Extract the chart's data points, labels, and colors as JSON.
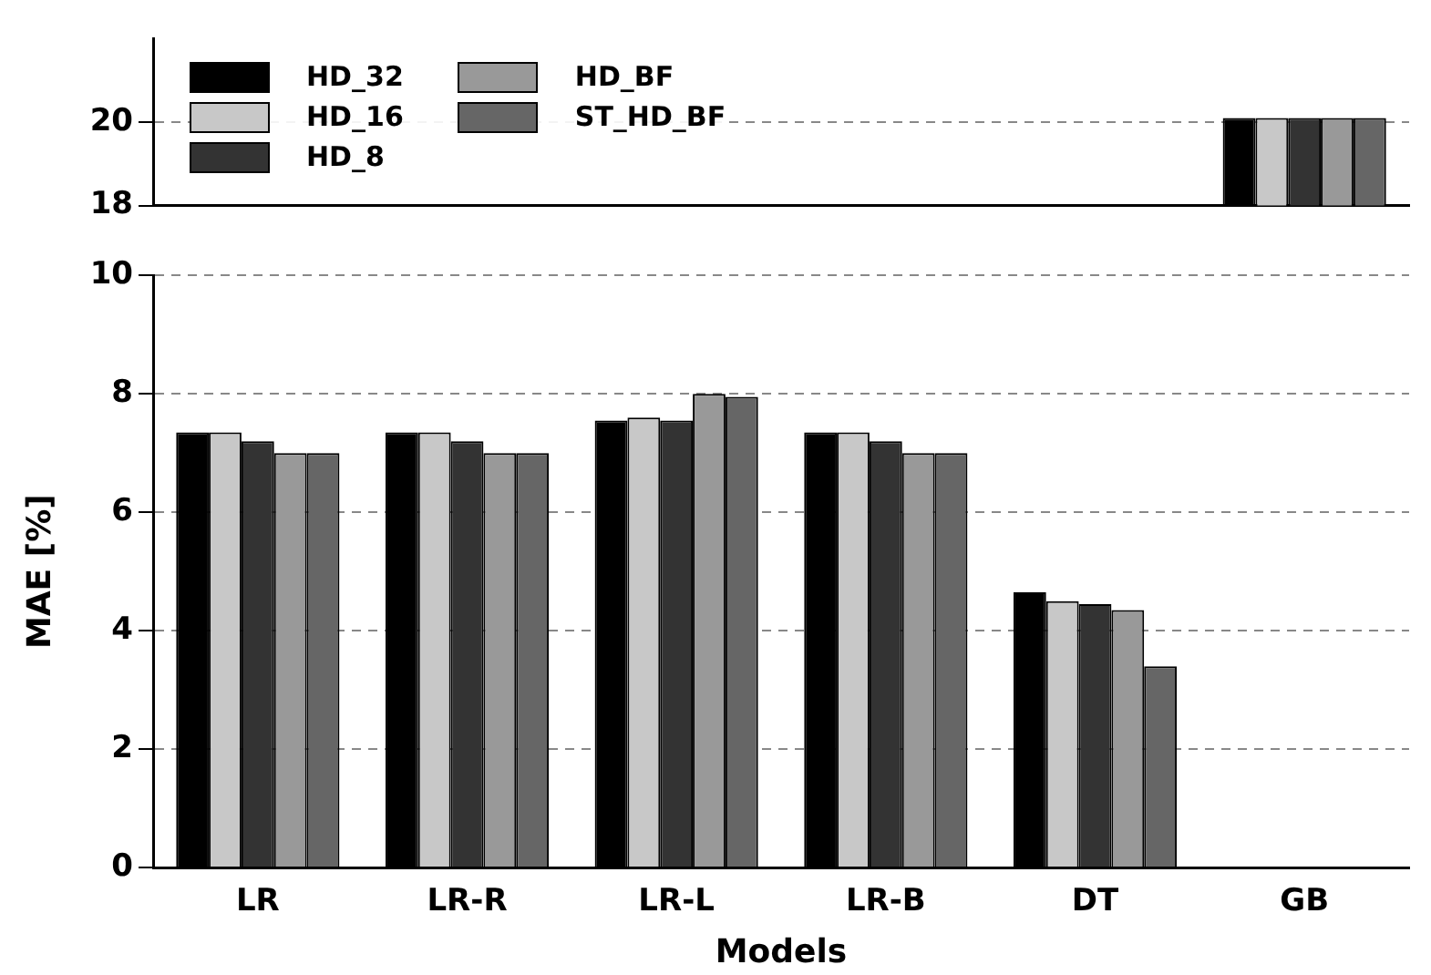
{
  "chart_data": [
    {
      "type": "bar",
      "categories": [
        null,
        null,
        null,
        null,
        null,
        null
      ],
      "series": [
        {
          "name": "HD_32",
          "color": "#000000",
          "values": [
            null,
            null,
            null,
            null,
            null,
            20.1
          ]
        },
        {
          "name": "HD_16",
          "color": "#c8c8c8",
          "values": [
            null,
            null,
            null,
            null,
            null,
            20.1
          ]
        },
        {
          "name": "HD_8",
          "color": "#333333",
          "values": [
            null,
            null,
            null,
            null,
            null,
            20.1
          ]
        },
        {
          "name": "HD_BF",
          "color": "#999999",
          "values": [
            null,
            null,
            null,
            null,
            null,
            20.1
          ]
        },
        {
          "name": "ST_HD_BF",
          "color": "#666666",
          "values": [
            null,
            null,
            null,
            null,
            null,
            20.1
          ]
        }
      ],
      "ylim": [
        18,
        22
      ],
      "yticks": [
        18,
        20
      ],
      "grid": "y",
      "legend": "top left",
      "tick_labels": "y"
    },
    {
      "type": "bar",
      "categories": [
        "LR",
        "LR-R",
        "LR-L",
        "LR-B",
        "DT",
        "GB"
      ],
      "xlabel": "Models",
      "ylabel": "MAE [%]",
      "series": [
        {
          "color": "#000000",
          "values": [
            7.35,
            7.35,
            7.55,
            7.35,
            4.65,
            null
          ]
        },
        {
          "color": "#c8c8c8",
          "values": [
            7.35,
            7.35,
            7.6,
            7.35,
            4.5,
            null
          ]
        },
        {
          "color": "#333333",
          "values": [
            7.2,
            7.2,
            7.55,
            7.2,
            4.45,
            null
          ]
        },
        {
          "color": "#999999",
          "values": [
            7.0,
            7.0,
            8.0,
            7.0,
            4.35,
            null
          ]
        },
        {
          "color": "#666666",
          "values": [
            7.0,
            7.0,
            7.95,
            7.0,
            3.4,
            null
          ]
        }
      ],
      "ylim": [
        0,
        10
      ],
      "yticks": [
        0,
        2,
        4,
        6,
        8,
        10
      ],
      "grid": "y",
      "legend": false
    }
  ]
}
